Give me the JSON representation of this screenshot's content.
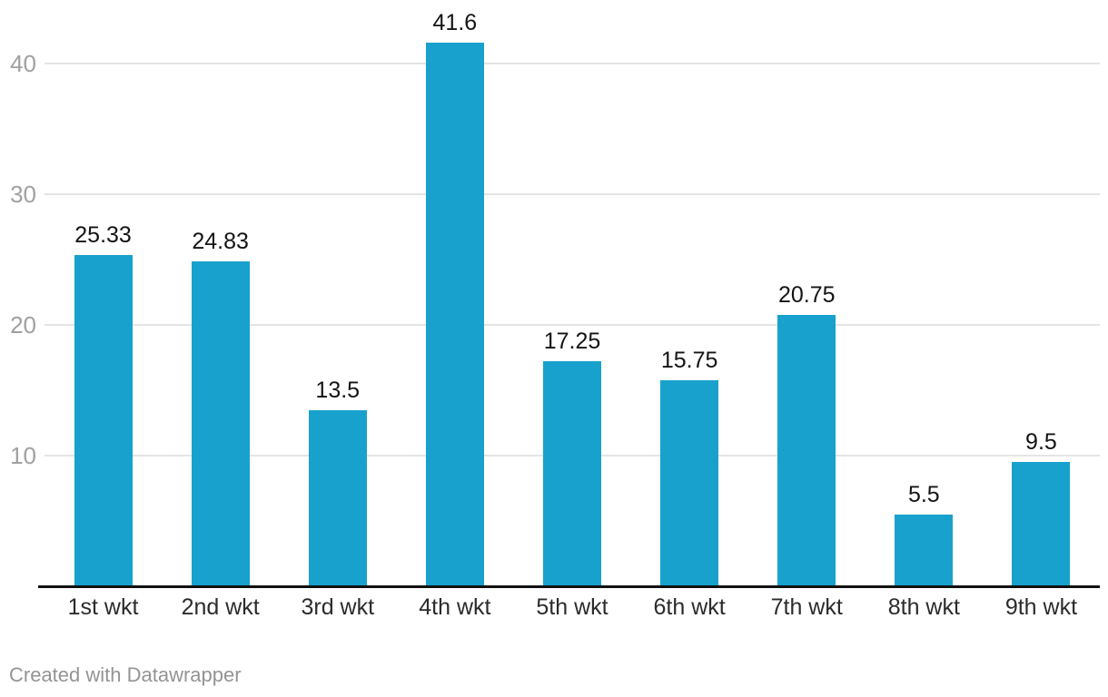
{
  "chart_data": {
    "type": "bar",
    "title": "",
    "categories": [
      "1st wkt",
      "2nd wkt",
      "3rd wkt",
      "4th wkt",
      "5th wkt",
      "6th wkt",
      "7th wkt",
      "8th wkt",
      "9th wkt"
    ],
    "values": [
      25.33,
      24.83,
      13.5,
      41.6,
      17.25,
      15.75,
      20.75,
      5.5,
      9.5
    ],
    "value_labels": [
      "25.33",
      "24.83",
      "13.5",
      "41.6",
      "17.25",
      "15.75",
      "20.75",
      "5.5",
      "9.5"
    ],
    "xlabel": "",
    "ylabel": "",
    "y_ticks": [
      10,
      20,
      30,
      40
    ],
    "y_tick_labels": [
      "10",
      "20",
      "30",
      "40"
    ],
    "ylim": [
      0,
      44.9
    ],
    "grid": true,
    "legend": "none",
    "bar_color": "#18a1cd",
    "grid_color": "#e4e4e4",
    "axis_line_color": "#111111",
    "tick_label_color": "#a0a0a0",
    "category_label_color": "#2b2b2b",
    "value_label_color": "#141414"
  },
  "footer": {
    "credit": "Created with Datawrapper"
  }
}
